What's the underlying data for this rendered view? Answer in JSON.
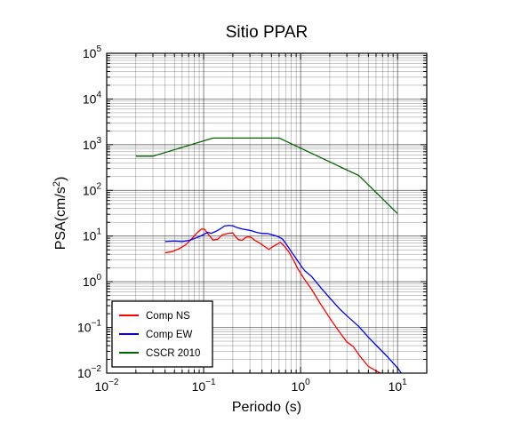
{
  "chart_data": {
    "type": "line",
    "title": "Sitio PPAR",
    "xlabel": "Periodo (s)",
    "ylabel_main": "PSA(cm/s",
    "ylabel_sup": "2",
    "ylabel_end": ")",
    "xscale": "log",
    "yscale": "log",
    "xlim": [
      0.01,
      20
    ],
    "ylim": [
      0.01,
      100000
    ],
    "grid": true,
    "legend_position": "bottom-left",
    "x_ticks": [
      {
        "value": 0.01,
        "base": "10",
        "exp": "−2"
      },
      {
        "value": 0.1,
        "base": "10",
        "exp": "−1"
      },
      {
        "value": 1,
        "base": "10",
        "exp": "0"
      },
      {
        "value": 10,
        "base": "10",
        "exp": "1"
      }
    ],
    "y_ticks": [
      {
        "value": 0.01,
        "base": "10",
        "exp": "−2"
      },
      {
        "value": 0.1,
        "base": "10",
        "exp": "−1"
      },
      {
        "value": 1,
        "base": "10",
        "exp": "0"
      },
      {
        "value": 10,
        "base": "10",
        "exp": "1"
      },
      {
        "value": 100,
        "base": "10",
        "exp": "2"
      },
      {
        "value": 1000,
        "base": "10",
        "exp": "3"
      },
      {
        "value": 10000,
        "base": "10",
        "exp": "4"
      },
      {
        "value": 100000,
        "base": "10",
        "exp": "5"
      }
    ],
    "series": [
      {
        "name": "Comp NS",
        "color": "#ff0000",
        "x": [
          0.04,
          0.048,
          0.056,
          0.065,
          0.075,
          0.085,
          0.095,
          0.102,
          0.11,
          0.125,
          0.14,
          0.155,
          0.17,
          0.185,
          0.2,
          0.215,
          0.23,
          0.25,
          0.27,
          0.29,
          0.31,
          0.34,
          0.38,
          0.42,
          0.47,
          0.52,
          0.57,
          0.62,
          0.68,
          0.75,
          0.83,
          0.95,
          1.1,
          1.3,
          1.6,
          2.0,
          2.5,
          3.0,
          3.5,
          4.0,
          5.0,
          6.0,
          7.0
        ],
        "y": [
          4.3,
          4.6,
          5.3,
          6.4,
          8.6,
          11.6,
          14.3,
          14.2,
          11.4,
          8.2,
          8.5,
          10.6,
          11.1,
          11.6,
          11.7,
          9.5,
          8.3,
          8.1,
          9.3,
          9.7,
          9.3,
          8.0,
          7.0,
          6.0,
          5.1,
          5.9,
          6.6,
          7.3,
          6.0,
          4.6,
          3.2,
          1.83,
          1.12,
          0.68,
          0.33,
          0.16,
          0.081,
          0.048,
          0.038,
          0.025,
          0.014,
          0.0112,
          0.0095
        ]
      },
      {
        "name": "Comp EW",
        "color": "#0000ff",
        "x": [
          0.04,
          0.05,
          0.06,
          0.07,
          0.08,
          0.09,
          0.1,
          0.11,
          0.12,
          0.135,
          0.15,
          0.165,
          0.18,
          0.2,
          0.22,
          0.25,
          0.28,
          0.31,
          0.35,
          0.4,
          0.45,
          0.5,
          0.55,
          0.6,
          0.65,
          0.7,
          0.8,
          0.9,
          1.0,
          1.1,
          1.3,
          1.6,
          2.0,
          2.5,
          3.0,
          4.0,
          5.0,
          6.0,
          8.0,
          10.0,
          11.0
        ],
        "y": [
          7.6,
          7.8,
          7.6,
          8.0,
          8.8,
          9.7,
          10.8,
          12.1,
          11.5,
          12.8,
          14.6,
          16.7,
          17.1,
          16.8,
          15.4,
          14.3,
          13.7,
          13.1,
          12.1,
          11.4,
          11.4,
          10.8,
          10.2,
          9.5,
          8.6,
          7.0,
          4.6,
          3.2,
          2.3,
          1.75,
          1.3,
          0.76,
          0.44,
          0.26,
          0.18,
          0.104,
          0.061,
          0.041,
          0.022,
          0.013,
          0.0098
        ]
      },
      {
        "name": "CSCR 2010",
        "color": "#006400",
        "x": [
          0.02,
          0.03,
          0.125,
          0.6,
          4.0,
          10.0
        ],
        "y": [
          560,
          560,
          1400,
          1400,
          210,
          31
        ]
      }
    ]
  }
}
